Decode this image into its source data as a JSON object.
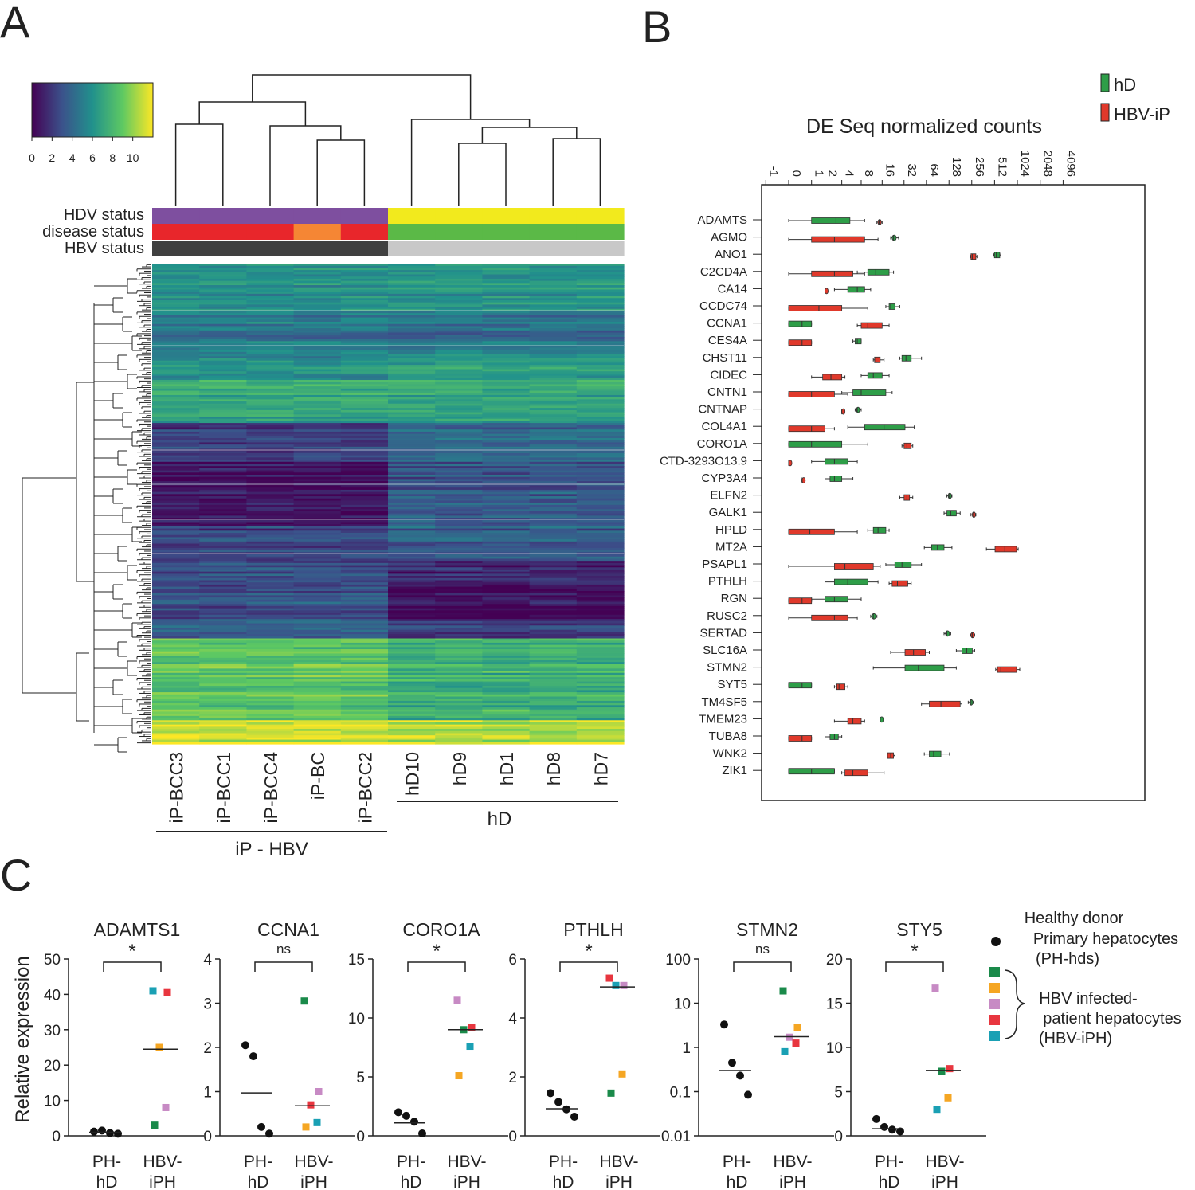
{
  "panel_labels": {
    "a": "A",
    "b": "B",
    "c": "C"
  },
  "heatmap": {
    "colorbar_ticks": [
      "0",
      "2",
      "4",
      "6",
      "8",
      "10"
    ],
    "colorbar_range": [
      0,
      12
    ],
    "colorscale": [
      "#440154",
      "#3b528b",
      "#21918c",
      "#5ec962",
      "#fde725"
    ],
    "row_labels": {
      "hdv": "HDV status",
      "disease": "disease status",
      "hbv": "HBV status"
    },
    "samples": [
      "iP-BCC3",
      "iP-BCC1",
      "iP-BCC4",
      "iP-BC",
      "iP-BCC2",
      "hD10",
      "hD9",
      "hD1",
      "hD8",
      "hD7"
    ],
    "hdv_colors": [
      "#7e4f9f",
      "#7e4f9f",
      "#7e4f9f",
      "#7e4f9f",
      "#7e4f9f",
      "#f2ea1d",
      "#f2ea1d",
      "#f2ea1d",
      "#f2ea1d",
      "#f2ea1d"
    ],
    "disease_colors": [
      "#e8262b",
      "#e8262b",
      "#e8262b",
      "#f58634",
      "#e8262b",
      "#5bb947",
      "#5bb947",
      "#5bb947",
      "#5bb947",
      "#5bb947"
    ],
    "hbv_colors": [
      "#404040",
      "#404040",
      "#404040",
      "#404040",
      "#404040",
      "#c8c8c8",
      "#c8c8c8",
      "#c8c8c8",
      "#c8c8c8",
      "#c8c8c8"
    ],
    "group_ip": "iP - HBV",
    "group_hd": "hD",
    "block_profile": [
      {
        "rows": 22,
        "ip": 6.0,
        "hd": 6.2
      },
      {
        "rows": 20,
        "ip": 4.8,
        "hd": 4.5
      },
      {
        "rows": 12,
        "ip": 5.8,
        "hd": 6.6
      },
      {
        "rows": 20,
        "ip": 7.0,
        "hd": 6.8
      },
      {
        "rows": 18,
        "ip": 2.0,
        "hd": 3.8
      },
      {
        "rows": 30,
        "ip": 0.6,
        "hd": 3.2
      },
      {
        "rows": 16,
        "ip": 2.4,
        "hd": 3.4
      },
      {
        "rows": 12,
        "ip": 3.0,
        "hd": 1.4
      },
      {
        "rows": 16,
        "ip": 3.2,
        "hd": 0.6
      },
      {
        "rows": 8,
        "ip": 3.4,
        "hd": 2.0
      },
      {
        "rows": 38,
        "ip": 8.8,
        "hd": 7.6
      },
      {
        "rows": 11,
        "ip": 11.0,
        "hd": 10.4
      }
    ]
  },
  "chart_data": [
    {
      "panel": "B",
      "type": "box",
      "title": "DE Seq normalized counts",
      "x_tick_labels": [
        "-1",
        "0",
        "1",
        "2",
        "4",
        "8",
        "16",
        "32",
        "64",
        "128",
        "256",
        "512",
        "1024",
        "2048",
        "4096"
      ],
      "scale": "log2(x+1)",
      "legend": [
        {
          "name": "hD",
          "color": "#2e9e48"
        },
        {
          "name": "HBV-iP",
          "color": "#e0392b"
        }
      ],
      "genes": [
        "ADAMTS",
        "AGMO",
        "ANO1",
        "C2CD4A",
        "CA14",
        "CCDC74",
        "CCNA1",
        "CES4A",
        "CHST11",
        "CIDEC",
        "CNTN1",
        "CNTNAP",
        "COL4A1",
        "CORO1A",
        "CTD-3293O13.9",
        "CYP3A4",
        "ELFN2",
        "GALK1",
        "HPLD",
        "MT2A",
        "PSAPL1",
        "PTHLH",
        "RGN",
        "RUSC2",
        "SERTAD",
        "SLC16A",
        "STMN2",
        "SYT5",
        "TM4SF5",
        "TMEM23",
        "TUBA8",
        "WNK2",
        "ZIK1"
      ],
      "boxes": [
        {
          "gene": "ADAMTS",
          "hD": [
            0,
            1,
            3.2,
            5.4,
            9
          ],
          "iP": [
            13.5,
            14,
            14.5,
            15.5,
            16
          ]
        },
        {
          "gene": "AGMO",
          "hD": [
            21,
            22,
            23,
            25,
            27
          ],
          "iP": [
            0,
            1,
            3,
            9,
            14
          ]
        },
        {
          "gene": "ANO1",
          "hD": [
            500,
            510,
            540,
            600,
            620
          ],
          "iP": [
            245,
            250,
            260,
            290,
            300
          ]
        },
        {
          "gene": "C2CD4A",
          "hD": [
            7,
            10,
            13,
            20,
            23
          ],
          "iP": [
            0,
            1,
            3,
            6,
            9
          ]
        },
        {
          "gene": "CA14",
          "hD": [
            3,
            5,
            7,
            9,
            11
          ],
          "iP": [
            2,
            2,
            2,
            2,
            2
          ]
        },
        {
          "gene": "CCDC74",
          "hD": [
            18,
            20,
            21,
            24,
            28
          ],
          "iP": [
            0,
            0,
            1.5,
            4,
            10
          ]
        },
        {
          "gene": "CCNA1",
          "hD": [
            0,
            0,
            0.5,
            1,
            1
          ],
          "iP": [
            7,
            8,
            10,
            16,
            20
          ]
        },
        {
          "gene": "CES4A",
          "hD": [
            6,
            6.5,
            7,
            8,
            8
          ],
          "iP": [
            0,
            0,
            0.5,
            1,
            1
          ]
        },
        {
          "gene": "CHST11",
          "hD": [
            28,
            30,
            34,
            40,
            55
          ],
          "iP": [
            12,
            12.5,
            13,
            15,
            17
          ]
        },
        {
          "gene": "CIDEC",
          "hD": [
            8,
            10,
            12,
            16,
            20
          ],
          "iP": [
            1,
            1.8,
            2.6,
            4,
            4.5
          ]
        },
        {
          "gene": "CNTN1",
          "hD": [
            4,
            6,
            8,
            18,
            22
          ],
          "iP": [
            0,
            0,
            1,
            3,
            5
          ]
        },
        {
          "gene": "CNTNAP",
          "hD": [
            6.5,
            6.8,
            7,
            7.5,
            8
          ],
          "iP": [
            4,
            4,
            4,
            4,
            4
          ]
        },
        {
          "gene": "COL4A1",
          "hD": [
            5,
            9,
            17,
            33,
            44
          ],
          "iP": [
            0,
            0,
            1,
            2,
            3
          ]
        },
        {
          "gene": "CORO1A",
          "hD": [
            0,
            0,
            1,
            4,
            10
          ],
          "iP": [
            30,
            32,
            35,
            40,
            42
          ]
        },
        {
          "gene": "CTD-3293O13.9",
          "hD": [
            1,
            2,
            3,
            5,
            7
          ],
          "iP": [
            0,
            0,
            0,
            0,
            0
          ]
        },
        {
          "gene": "CYP3A4",
          "hD": [
            2,
            2.5,
            3,
            4,
            6
          ],
          "iP": [
            0.5,
            0.5,
            0.5,
            0.5,
            0.5
          ]
        },
        {
          "gene": "ELFN2",
          "hD": [
            120,
            125,
            128,
            135,
            140
          ],
          "iP": [
            28,
            32,
            35,
            38,
            42
          ]
        },
        {
          "gene": "GALK1",
          "hD": [
            110,
            120,
            135,
            160,
            180
          ],
          "iP": [
            250,
            260,
            270,
            280,
            290
          ]
        },
        {
          "gene": "HPLD",
          "hD": [
            10,
            12,
            14,
            18,
            20
          ],
          "iP": [
            0,
            0,
            0.9,
            3,
            7
          ]
        },
        {
          "gene": "MT2A",
          "hD": [
            60,
            75,
            90,
            110,
            140
          ],
          "iP": [
            400,
            520,
            700,
            1000,
            1050
          ]
        },
        {
          "gene": "PSAPL1",
          "hD": [
            18,
            24,
            30,
            40,
            55
          ],
          "iP": [
            0,
            3,
            4.5,
            12,
            15
          ]
        },
        {
          "gene": "PTHLH",
          "hD": [
            2,
            3,
            5,
            10,
            14
          ],
          "iP": [
            20,
            22,
            26,
            36,
            40
          ]
        },
        {
          "gene": "RGN",
          "hD": [
            1,
            2,
            3,
            5,
            8
          ],
          "iP": [
            0,
            0,
            0.5,
            1,
            1
          ]
        },
        {
          "gene": "RUSC2",
          "hD": [
            11,
            11.5,
            12,
            13,
            13.5
          ],
          "iP": [
            0,
            1,
            3,
            5,
            7
          ]
        },
        {
          "gene": "SERTAD",
          "hD": [
            110,
            115,
            120,
            130,
            135
          ],
          "iP": [
            245,
            250,
            260,
            275,
            280
          ]
        },
        {
          "gene": "SLC16A",
          "hD": [
            160,
            190,
            220,
            260,
            280
          ],
          "iP": [
            21,
            33,
            43,
            62,
            70
          ]
        },
        {
          "gene": "STMN2",
          "hD": [
            12,
            33,
            50,
            110,
            160
          ],
          "iP": [
            530,
            560,
            620,
            1000,
            1100
          ]
        },
        {
          "gene": "SYT5",
          "hD": [
            0,
            0,
            0.5,
            1,
            1
          ],
          "iP": [
            3,
            3.3,
            3.6,
            4.5,
            5
          ]
        },
        {
          "gene": "TM4SF5",
          "hD": [
            230,
            240,
            250,
            260,
            270
          ],
          "iP": [
            55,
            70,
            100,
            180,
            190
          ]
        },
        {
          "gene": "TMEM23",
          "hD": [
            15,
            15,
            15,
            15,
            15
          ],
          "iP": [
            3,
            5,
            6,
            8,
            9
          ]
        },
        {
          "gene": "TUBA8",
          "hD": [
            2,
            2.5,
            3,
            3.5,
            4
          ],
          "iP": [
            0,
            0,
            0.5,
            1,
            1
          ]
        },
        {
          "gene": "WNK2",
          "hD": [
            60,
            70,
            80,
            100,
            130
          ],
          "iP": [
            19,
            19,
            21,
            23,
            24
          ]
        },
        {
          "gene": "ZIK1",
          "hD": [
            0,
            0,
            1,
            3,
            3
          ],
          "iP": [
            4,
            4.5,
            6,
            10,
            17
          ]
        }
      ]
    },
    {
      "panel": "C",
      "type": "scatter",
      "title": "ADAMTS1",
      "scale": "linear",
      "ylim": [
        0,
        50
      ],
      "ticks": [
        "0",
        "10",
        "20",
        "30",
        "40",
        "50"
      ],
      "ylabel": "Relative expression",
      "sig": "*",
      "ph_values": [
        1.2,
        1.5,
        0.8,
        0.6
      ],
      "ph_median": 1.0,
      "ip_values": [
        41,
        40.5,
        25,
        8,
        3
      ],
      "ip_colors": [
        "#1aa0b4",
        "#e8363f",
        "#f5a623",
        "#c78ac4",
        "#1a8a4a"
      ],
      "ip_median": 24.5,
      "categories": [
        "PH-\nhD",
        "HBV-\niPH"
      ]
    },
    {
      "panel": "C",
      "type": "scatter",
      "title": "CCNA1",
      "scale": "linear",
      "ylim": [
        0,
        4
      ],
      "ticks": [
        "0",
        "1",
        "2",
        "3",
        "4"
      ],
      "sig": "ns",
      "ph_values": [
        2.05,
        1.8,
        0.2,
        0.05
      ],
      "ph_median": 0.97,
      "ip_values": [
        3.05,
        1.0,
        0.7,
        0.3,
        0.2
      ],
      "ip_colors": [
        "#1a8a4a",
        "#c78ac4",
        "#e8363f",
        "#1aa0b4",
        "#f5a623"
      ],
      "ip_median": 0.68,
      "categories": [
        "PH-\nhD",
        "HBV-\niPH"
      ]
    },
    {
      "panel": "C",
      "type": "scatter",
      "title": "CORO1A",
      "scale": "linear",
      "ylim": [
        0,
        15
      ],
      "ticks": [
        "0",
        "5",
        "10",
        "15"
      ],
      "sig": "*",
      "ph_values": [
        2.0,
        1.7,
        1.2,
        0.2
      ],
      "ph_median": 1.1,
      "ip_values": [
        11.5,
        9.2,
        9.0,
        7.6,
        5.1
      ],
      "ip_colors": [
        "#c78ac4",
        "#e8363f",
        "#1a8a4a",
        "#1aa0b4",
        "#f5a623"
      ],
      "ip_median": 9.0,
      "categories": [
        "PH-\nhD",
        "HBV-\niPH"
      ]
    },
    {
      "panel": "C",
      "type": "scatter",
      "title": "PTHLH",
      "scale": "linear",
      "ylim": [
        0,
        6
      ],
      "ticks": [
        "0",
        "2",
        "4",
        "6"
      ],
      "sig": "*",
      "ph_values": [
        1.45,
        1.15,
        0.9,
        0.65
      ],
      "ph_median": 0.92,
      "ip_values": [
        5.35,
        5.1,
        5.1,
        2.1,
        1.45
      ],
      "ip_colors": [
        "#e8363f",
        "#c78ac4",
        "#1aa0b4",
        "#f5a623",
        "#1a8a4a"
      ],
      "ip_median": 5.05,
      "categories": [
        "PH-\nhD",
        "HBV-\niPH"
      ]
    },
    {
      "panel": "C",
      "type": "scatter",
      "title": "STMN2",
      "scale": "log",
      "ylim": [
        0.01,
        100
      ],
      "ticks": [
        "0.01",
        "0.1",
        "1",
        "10",
        "100"
      ],
      "sig": "ns",
      "ph_values": [
        3.3,
        0.45,
        0.23,
        0.085
      ],
      "ph_median": 0.3,
      "ip_values": [
        19,
        2.8,
        1.7,
        1.25,
        0.8
      ],
      "ip_colors": [
        "#1a8a4a",
        "#f5a623",
        "#c78ac4",
        "#e8363f",
        "#1aa0b4"
      ],
      "ip_median": 1.75,
      "categories": [
        "PH-\nhD",
        "HBV-\niPH"
      ]
    },
    {
      "panel": "C",
      "type": "scatter",
      "title": "STY5",
      "scale": "linear",
      "ylim": [
        0,
        20
      ],
      "ticks": [
        "0",
        "5",
        "10",
        "15",
        "20"
      ],
      "sig": "*",
      "ph_values": [
        1.9,
        1.0,
        0.7,
        0.5
      ],
      "ph_median": 0.8,
      "ip_values": [
        16.7,
        7.6,
        7.3,
        4.3,
        3.0
      ],
      "ip_colors": [
        "#c78ac4",
        "#e8363f",
        "#1a8a4a",
        "#f5a623",
        "#1aa0b4"
      ],
      "ip_median": 7.4,
      "categories": [
        "PH-\nhD",
        "HBV-\niPH"
      ]
    }
  ],
  "legend_c": {
    "healthy": [
      "Healthy donor",
      "Primary hepatocytes",
      "(PH-hds)"
    ],
    "hbv": [
      "HBV infected-",
      "patient hepatocytes",
      "(HBV-iPH)"
    ],
    "colors": [
      "#1a8a4a",
      "#f5a623",
      "#c78ac4",
      "#e8363f",
      "#1aa0b4"
    ]
  }
}
